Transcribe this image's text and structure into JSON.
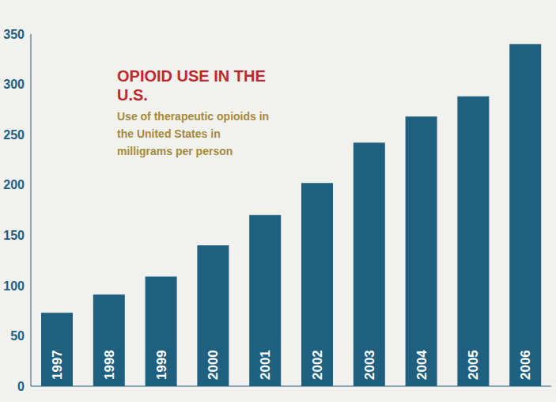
{
  "chart_data": {
    "type": "bar",
    "title": "OPIOID USE IN THE U.S.",
    "subtitle": "Use of therapeutic opioids in the United States in milligrams per person",
    "categories": [
      "1997",
      "1998",
      "1999",
      "2000",
      "2001",
      "2002",
      "2003",
      "2004",
      "2005",
      "2006"
    ],
    "values": [
      73,
      91,
      109,
      140,
      170,
      202,
      242,
      268,
      288,
      340
    ],
    "color": "#1f5f80",
    "ylim": [
      0,
      350
    ],
    "yticks": [
      0,
      50,
      100,
      150,
      200,
      250,
      300,
      350
    ],
    "grid": false
  }
}
